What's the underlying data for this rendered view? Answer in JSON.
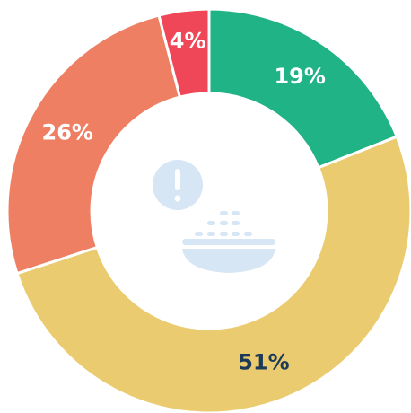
{
  "chart_data": {
    "type": "donut",
    "values": [
      19,
      51,
      26,
      4
    ],
    "value_labels": [
      "19%",
      "51%",
      "26%",
      "4%"
    ],
    "colors": [
      "#1fb386",
      "#ebcb70",
      "#ee7f62",
      "#ef4757"
    ],
    "label_colors": [
      "#ffffff",
      "#1d3b57",
      "#ffffff",
      "#ffffff"
    ]
  }
}
